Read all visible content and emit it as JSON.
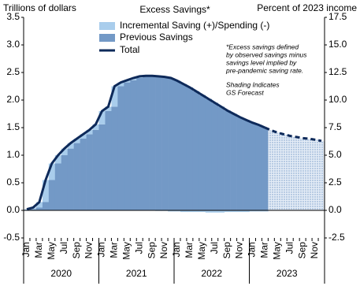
{
  "chart_data": {
    "type": "bar",
    "title": "Excess Savings*",
    "y_label": "Trillions of dollars",
    "y2_label": "Percent of 2023 income",
    "notes": [
      [
        "*Excess savings defined",
        "by observed savings minus",
        "savings level implied by",
        "pre-pandemic saving rate."
      ],
      [
        "Shading Indicates",
        "GS Forecast"
      ]
    ],
    "categories": [
      "Jan",
      null,
      "Mar",
      null,
      "May",
      null,
      "Jul",
      null,
      "Sep",
      null,
      "Nov",
      null,
      "Jan",
      null,
      "Mar",
      null,
      "May",
      null,
      "Jul",
      null,
      "Sep",
      null,
      "Nov",
      null,
      "Jan",
      null,
      "Mar",
      null,
      "May",
      null,
      "Jul",
      null,
      "Sep",
      null,
      "Nov",
      null,
      "Jan",
      null,
      "Mar",
      null,
      "May",
      null,
      "Jul",
      null,
      "Sep",
      null,
      "Nov",
      null
    ],
    "years": [
      "2020",
      "2021",
      "2022",
      "2023"
    ],
    "series": [
      {
        "name": "Incremental Saving (+)/Spending (-)",
        "color": "#a9cdec",
        "mark": "bar",
        "values": [
          0.02,
          0.03,
          0.1,
          0.4,
          0.3,
          0.15,
          0.12,
          0.1,
          0.08,
          0.08,
          0.08,
          0.1,
          0.24,
          0.08,
          0.37,
          0.07,
          0.04,
          0.04,
          0.03,
          0.01,
          0,
          -0.01,
          -0.01,
          -0.02,
          -0.02,
          -0.03,
          -0.03,
          -0.03,
          -0.03,
          -0.04,
          -0.04,
          -0.04,
          -0.03,
          -0.03,
          -0.03,
          -0.03,
          -0.02,
          -0.02,
          -0.02,
          null,
          null,
          null,
          null,
          null,
          null,
          null,
          null,
          null
        ]
      },
      {
        "name": "Previous Savings",
        "color": "#7399c6",
        "mark": "bar",
        "values": [
          0,
          0.02,
          0.05,
          0.15,
          0.55,
          0.85,
          1.0,
          1.12,
          1.22,
          1.3,
          1.38,
          1.46,
          1.56,
          1.8,
          1.88,
          2.25,
          2.32,
          2.36,
          2.4,
          2.43,
          2.44,
          2.43,
          2.42,
          2.4,
          2.35,
          2.29,
          2.23,
          2.16,
          2.09,
          2.02,
          1.95,
          1.88,
          1.81,
          1.75,
          1.69,
          1.64,
          1.59,
          1.55,
          1.5,
          null,
          null,
          null,
          null,
          null,
          null,
          null,
          null,
          null
        ]
      },
      {
        "name": "Total",
        "color": "#0e2a5a",
        "mark": "line",
        "values": [
          0.02,
          0.05,
          0.15,
          0.55,
          0.85,
          1.0,
          1.12,
          1.22,
          1.3,
          1.38,
          1.46,
          1.56,
          1.8,
          1.88,
          2.25,
          2.32,
          2.36,
          2.4,
          2.43,
          2.44,
          2.44,
          2.43,
          2.42,
          2.4,
          2.35,
          2.29,
          2.23,
          2.16,
          2.09,
          2.02,
          1.95,
          1.88,
          1.81,
          1.75,
          1.69,
          1.64,
          1.59,
          1.55,
          1.5,
          null,
          null,
          null,
          null,
          null,
          null,
          null,
          null,
          null
        ]
      },
      {
        "color": "#0e2a5a",
        "mark": "forecast",
        "values": [
          null,
          null,
          null,
          null,
          null,
          null,
          null,
          null,
          null,
          null,
          null,
          null,
          null,
          null,
          null,
          null,
          null,
          null,
          null,
          null,
          null,
          null,
          null,
          null,
          null,
          null,
          null,
          null,
          null,
          null,
          null,
          null,
          null,
          null,
          null,
          null,
          null,
          null,
          1.5,
          1.45,
          1.41,
          1.38,
          1.35,
          1.33,
          1.31,
          1.3,
          1.28,
          1.26
        ]
      }
    ],
    "ylim": [
      -0.5,
      3.5
    ],
    "yticks": [
      {
        "value": -0.5,
        "label": "-0.5"
      },
      {
        "value": 0,
        "label": "0.0"
      },
      0.5,
      {
        "value": 1,
        "label": "1.0"
      },
      1.5,
      {
        "value": 2,
        "label": "2.0"
      },
      2.5,
      {
        "value": 3,
        "label": "3.0"
      },
      3.5
    ],
    "y2lim": [
      -2.5,
      17.5
    ],
    "y2ticks": [
      {
        "value": -2.5,
        "label": "-2.5"
      },
      {
        "value": 0,
        "label": "0.0"
      },
      2.5,
      {
        "value": 5,
        "label": "5.0"
      },
      7.5,
      {
        "value": 10,
        "label": "10.0"
      },
      12.5,
      {
        "value": 15,
        "label": "15.0"
      },
      17.5
    ]
  }
}
